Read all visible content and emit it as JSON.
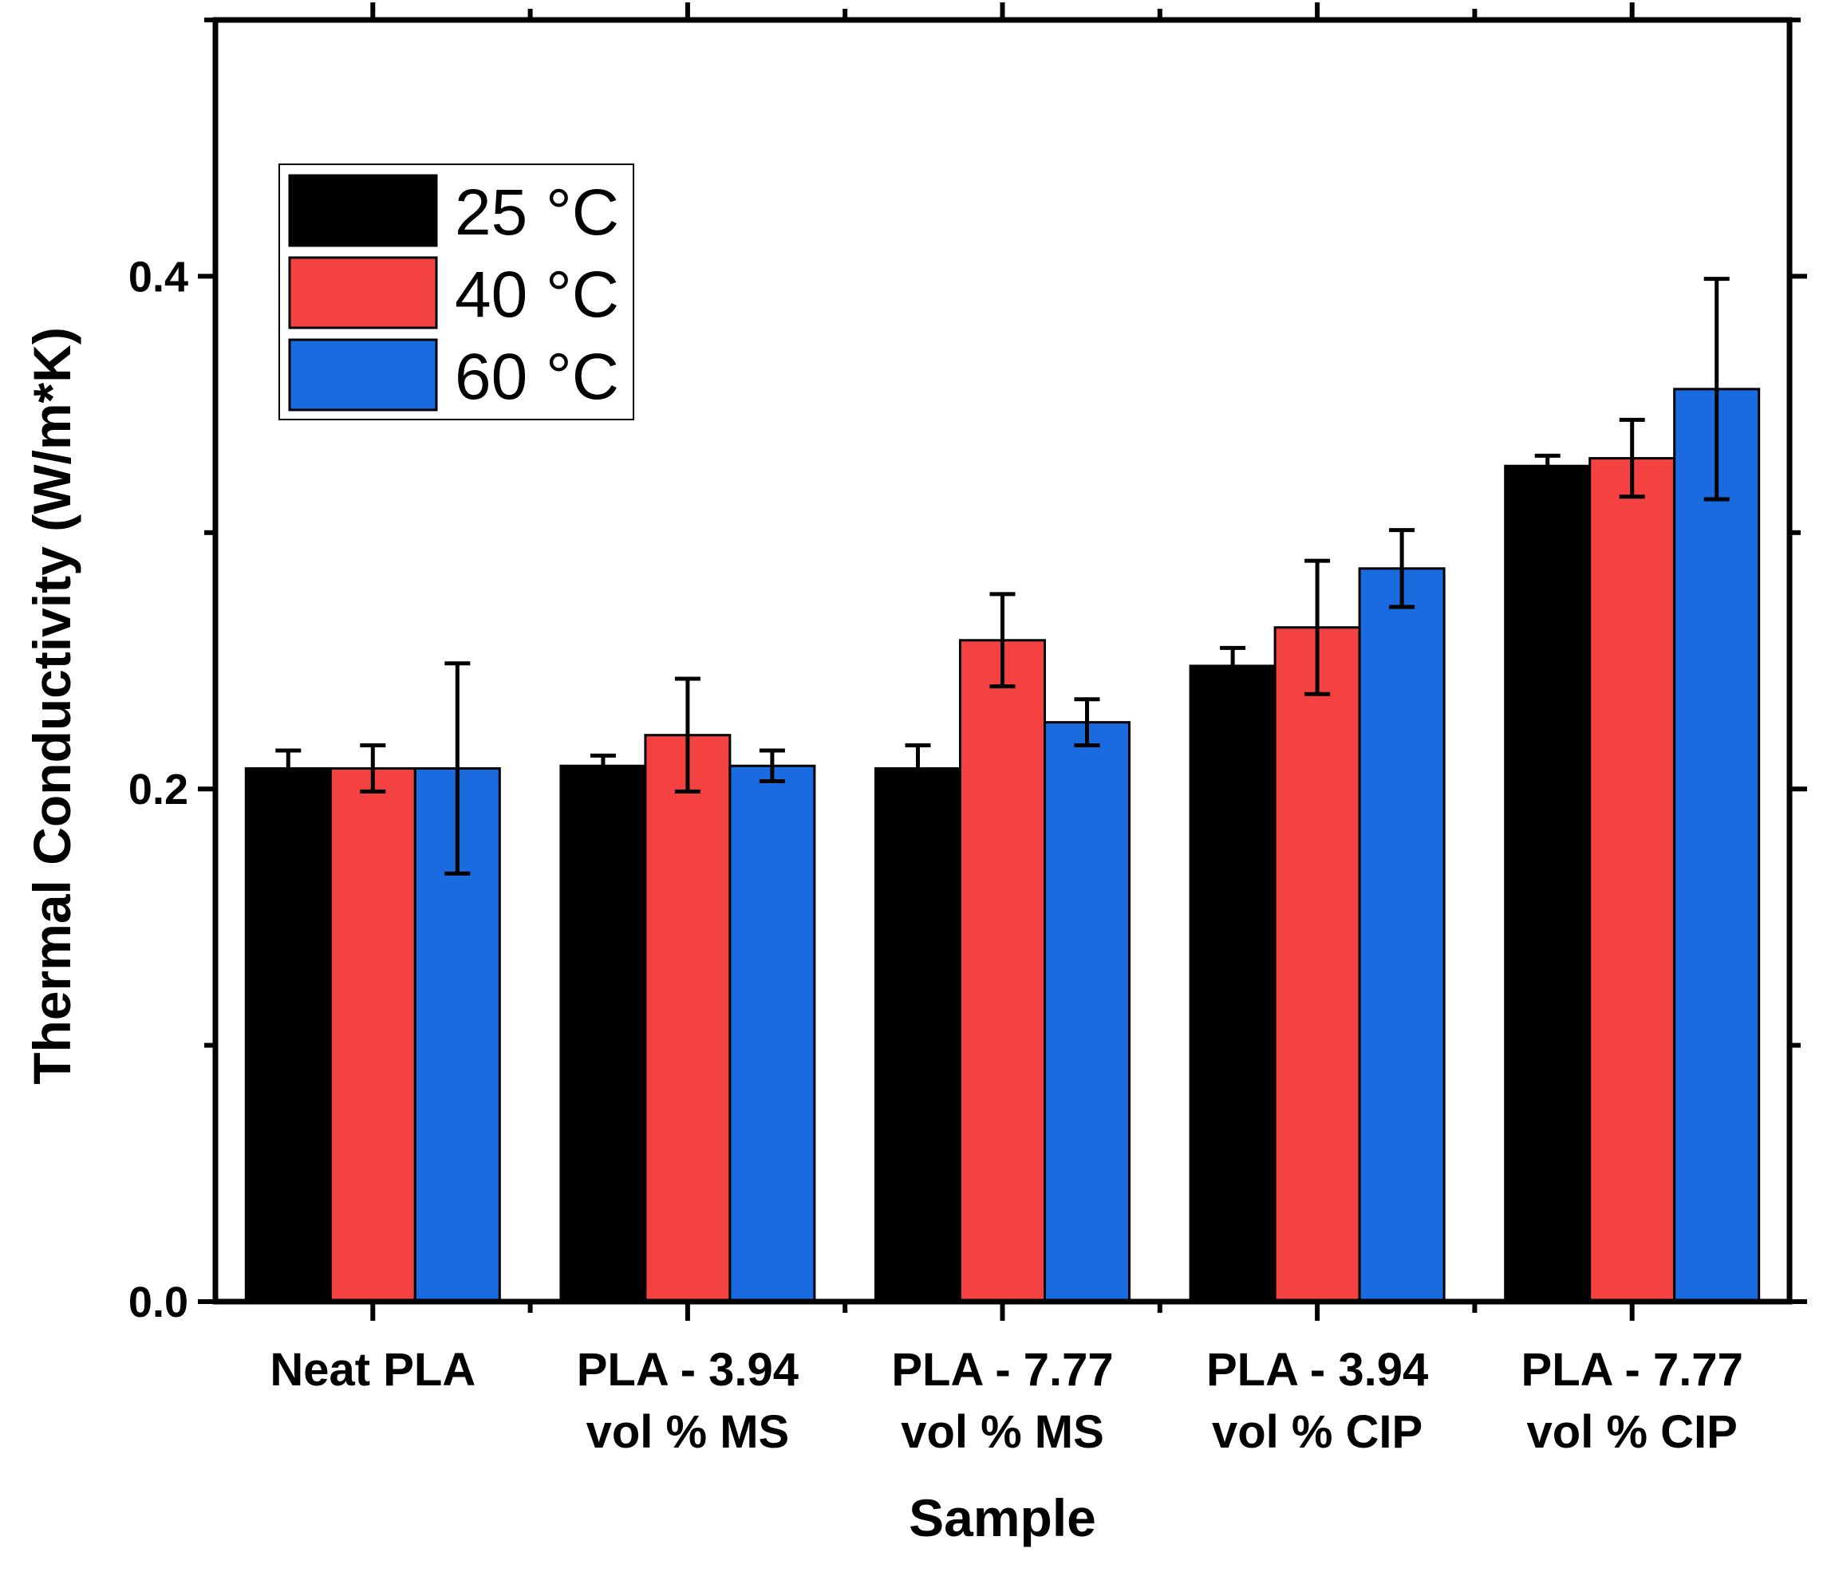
{
  "chart_data": {
    "type": "bar",
    "title": "",
    "xlabel": "Sample",
    "ylabel": "Thermal Conductivity (W/m*K)",
    "ylim": [
      0,
      0.5
    ],
    "yticks": [
      0.0,
      0.2,
      0.4
    ],
    "ytick_labels": [
      "0.0",
      "0.2",
      "0.4"
    ],
    "categories": [
      [
        "Neat PLA"
      ],
      [
        "PLA - 3.94",
        "vol % MS"
      ],
      [
        "PLA - 7.77",
        "vol % MS"
      ],
      [
        "PLA - 3.94",
        "vol % CIP"
      ],
      [
        "PLA - 7.77",
        "vol % CIP"
      ]
    ],
    "series": [
      {
        "name": "25 °C",
        "color": "#000000",
        "values": [
          0.208,
          0.209,
          0.208,
          0.248,
          0.326
        ],
        "errors": [
          0.007,
          0.004,
          0.009,
          0.007,
          0.004
        ]
      },
      {
        "name": "40 °C",
        "color": "#f44242",
        "values": [
          0.208,
          0.221,
          0.258,
          0.263,
          0.329
        ],
        "errors": [
          0.009,
          0.022,
          0.018,
          0.026,
          0.015
        ]
      },
      {
        "name": "60 °C",
        "color": "#1a6be0",
        "values": [
          0.208,
          0.209,
          0.226,
          0.286,
          0.356
        ],
        "errors": [
          0.041,
          0.006,
          0.009,
          0.015,
          0.043
        ]
      }
    ],
    "legend": "top-left",
    "grid": false
  }
}
